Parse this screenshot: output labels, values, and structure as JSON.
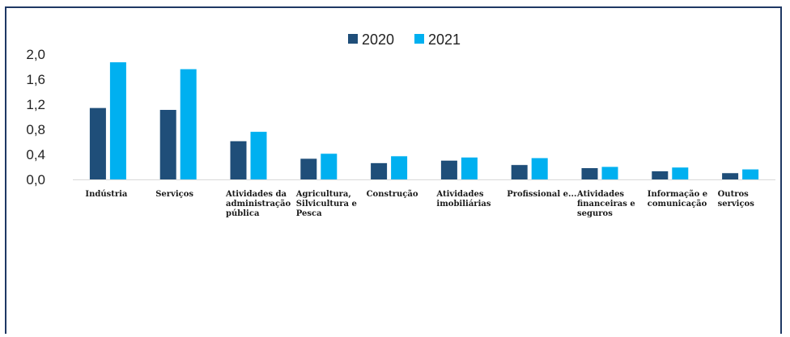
{
  "chart_data": {
    "type": "bar",
    "title": "",
    "xlabel": "",
    "ylabel": "",
    "ylim": [
      0,
      2.0
    ],
    "yticks": [
      "0,0",
      "0,4",
      "0,8",
      "1,2",
      "1,6",
      "2,0"
    ],
    "grid": false,
    "legend_position": "top-center",
    "categories": [
      [
        "Indústria"
      ],
      [
        "Serviços"
      ],
      [
        "Atividades da",
        "administração",
        "pública"
      ],
      [
        "Agricultura,",
        "Silvicultura e",
        "Pesca"
      ],
      [
        "Construção"
      ],
      [
        "Atividades",
        "imobiliárias"
      ],
      [
        "Profissional e..."
      ],
      [
        "Atividades",
        "financeiras e",
        "seguros"
      ],
      [
        "Informação e",
        "comunicação"
      ],
      [
        "Outros",
        "serviços"
      ]
    ],
    "series": [
      {
        "name": "2020",
        "color": "#1f4e79",
        "values": [
          1.14,
          1.11,
          0.61,
          0.33,
          0.26,
          0.3,
          0.23,
          0.18,
          0.13,
          0.1
        ]
      },
      {
        "name": "2021",
        "color": "#00b0f0",
        "values": [
          1.87,
          1.76,
          0.76,
          0.41,
          0.37,
          0.35,
          0.34,
          0.2,
          0.19,
          0.16
        ]
      }
    ]
  }
}
